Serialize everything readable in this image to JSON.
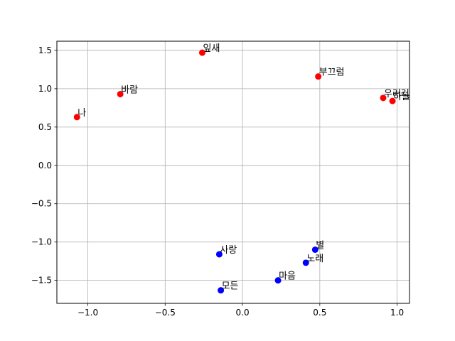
{
  "chart_data": {
    "type": "scatter",
    "title": "",
    "xlabel": "",
    "ylabel": "",
    "xlim": [
      -1.2,
      1.08
    ],
    "ylim": [
      -1.8,
      1.62
    ],
    "grid": true,
    "x_ticks": [
      -1.0,
      -0.5,
      0.0,
      0.5,
      1.0
    ],
    "x_tick_labels": [
      "−1.0",
      "−0.5",
      "0.0",
      "0.5",
      "1.0"
    ],
    "y_ticks": [
      -1.5,
      -1.0,
      -0.5,
      0.0,
      0.5,
      1.0,
      1.5
    ],
    "y_tick_labels": [
      "−1.5",
      "−1.0",
      "−0.5",
      "0.0",
      "0.5",
      "1.0",
      "1.5"
    ],
    "series": [
      {
        "color": "#ff0000",
        "points": [
          {
            "label": "나",
            "x": -1.07,
            "y": 0.63
          },
          {
            "label": "바람",
            "x": -0.79,
            "y": 0.93
          },
          {
            "label": "잎새",
            "x": -0.26,
            "y": 1.47
          },
          {
            "label": "부끄럼",
            "x": 0.49,
            "y": 1.16
          },
          {
            "label": "우러러",
            "x": 0.91,
            "y": 0.88
          },
          {
            "label": "하늘",
            "x": 0.97,
            "y": 0.84
          }
        ]
      },
      {
        "color": "#0000ff",
        "points": [
          {
            "label": "사랑",
            "x": -0.15,
            "y": -1.16
          },
          {
            "label": "모든",
            "x": -0.14,
            "y": -1.63
          },
          {
            "label": "마음",
            "x": 0.23,
            "y": -1.5
          },
          {
            "label": "노래",
            "x": 0.41,
            "y": -1.27
          },
          {
            "label": "별",
            "x": 0.47,
            "y": -1.1
          }
        ]
      }
    ]
  }
}
